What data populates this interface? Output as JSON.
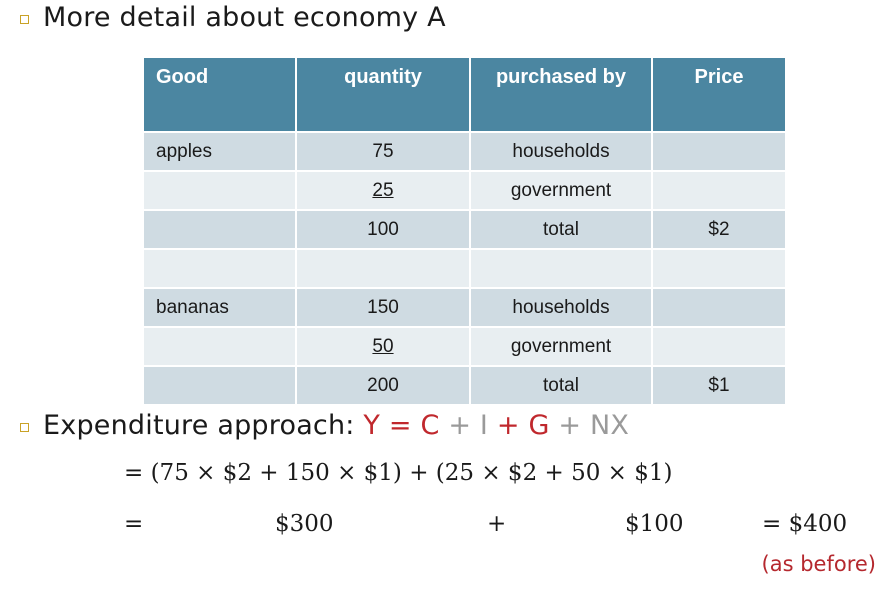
{
  "bullet1": "More detail about economy A",
  "table": {
    "headers": [
      "Good",
      "quantity",
      "purchased by",
      "Price"
    ],
    "rows": [
      {
        "good": "apples",
        "qty": "75",
        "by": "households",
        "price": ""
      },
      {
        "good": "",
        "qty": "25",
        "by": "government",
        "price": ""
      },
      {
        "good": "",
        "qty": "100",
        "by": "total",
        "price": "$2"
      },
      {
        "good": "",
        "qty": "",
        "by": "",
        "price": ""
      },
      {
        "good": "bananas",
        "qty": "150",
        "by": "households",
        "price": ""
      },
      {
        "good": "",
        "qty": "50",
        "by": "government",
        "price": ""
      },
      {
        "good": "",
        "qty": "200",
        "by": "total",
        "price": "$1"
      }
    ]
  },
  "bullet2": {
    "prefix": "Expenditure approach: ",
    "y": "Y",
    "eq": " = ",
    "c": "C",
    "plus1": " + ",
    "i": "I",
    "plus2": " + ",
    "g": "G",
    "plus3": " + ",
    "nx": "NX"
  },
  "math": {
    "line1": "= (75 × $2  +  150 × $1) +  (25 × $2  +  50 × $1)",
    "eq_sign": "=",
    "v300": "$300",
    "plus": "+",
    "v100": "$100",
    "total": "= $400"
  },
  "note": "(as before)",
  "colors": {
    "header_bg": "#4b86a1",
    "row_dark": "#cfdbe2",
    "row_light": "#e8eef1",
    "accent_red": "#c0282d",
    "bullet": "#c9a227"
  }
}
